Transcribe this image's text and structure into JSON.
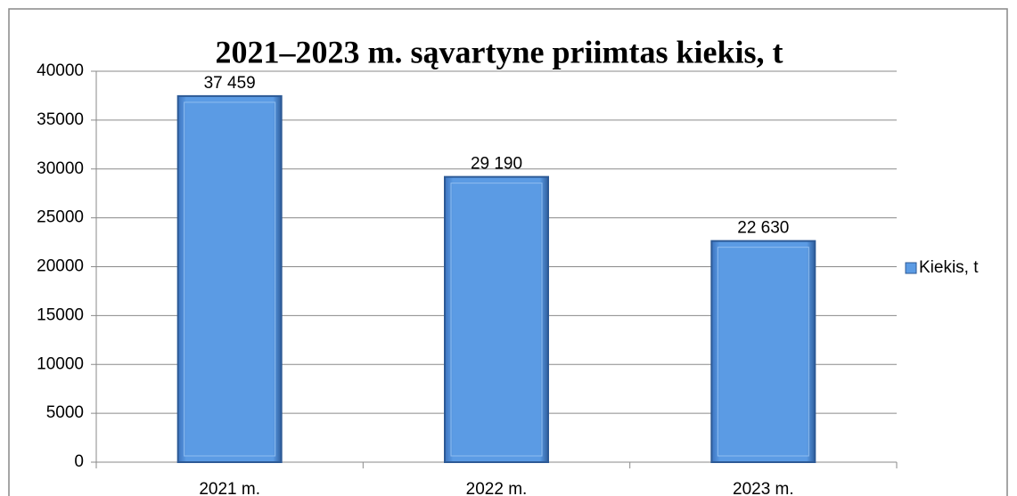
{
  "chart_data": {
    "type": "bar",
    "title": "2021‒2023 m. sąvartyne priimtas kiekis, t",
    "categories": [
      "2021 m.",
      "2022 m.",
      "2023 m."
    ],
    "series": [
      {
        "name": "Kiekis, t",
        "color": "#5b9be4",
        "values": [
          37459,
          29190,
          22630
        ],
        "value_labels": [
          "37 459",
          "29 190",
          "22 630"
        ]
      }
    ],
    "ylim": [
      0,
      40000
    ],
    "yticks": [
      0,
      5000,
      10000,
      15000,
      20000,
      25000,
      30000,
      35000,
      40000
    ],
    "grid": true,
    "legend": "right"
  }
}
